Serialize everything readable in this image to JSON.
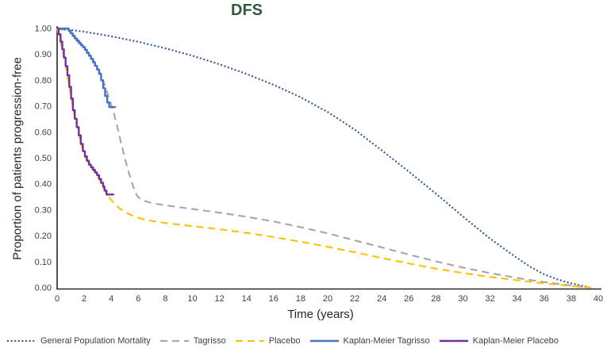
{
  "title": "DFS",
  "colors": {
    "title_green": "#2F5B3C",
    "axis": "#262626",
    "tick_text": "#404040",
    "general_population": "#2F5597",
    "tagrisso_extrapolated": "#A6A6A6",
    "placebo_extrapolated": "#FFC000",
    "km_tagrisso": "#4472C4",
    "km_placebo": "#7030A0"
  },
  "legend": {
    "position": "bottom",
    "items": [
      "General Population Mortality",
      "Tagrisso",
      "Placebo",
      "Kaplan-Meier Tagrisso",
      "Kaplan-Meier Placebo"
    ]
  },
  "chart_data": {
    "type": "line",
    "title": "DFS",
    "xlabel": "Time (years)",
    "ylabel": "Proportion of patients progression-free",
    "xlim": [
      0,
      40
    ],
    "ylim": [
      0,
      1
    ],
    "grid": false,
    "legend_position": "bottom",
    "x_ticks": [
      0,
      2,
      4,
      6,
      8,
      10,
      12,
      14,
      16,
      18,
      20,
      22,
      24,
      26,
      28,
      30,
      32,
      34,
      36,
      38,
      40
    ],
    "y_ticks": [
      "0.00",
      "0.10",
      "0.20",
      "0.30",
      "0.40",
      "0.50",
      "0.60",
      "0.70",
      "0.80",
      "0.90",
      "1.00"
    ],
    "series": [
      {
        "name": "General Population Mortality",
        "color": "#2F5597",
        "style": "dotted",
        "step": false,
        "points": [
          [
            0,
            1.0
          ],
          [
            2,
            0.988
          ],
          [
            4,
            0.97
          ],
          [
            6,
            0.949
          ],
          [
            8,
            0.924
          ],
          [
            10,
            0.895
          ],
          [
            12,
            0.862
          ],
          [
            14,
            0.825
          ],
          [
            16,
            0.783
          ],
          [
            18,
            0.735
          ],
          [
            20,
            0.678
          ],
          [
            22,
            0.61
          ],
          [
            24,
            0.53
          ],
          [
            26,
            0.448
          ],
          [
            28,
            0.363
          ],
          [
            30,
            0.275
          ],
          [
            32,
            0.19
          ],
          [
            34,
            0.115
          ],
          [
            35,
            0.08
          ],
          [
            36,
            0.052
          ],
          [
            37,
            0.032
          ],
          [
            38,
            0.017
          ],
          [
            39,
            0.006
          ],
          [
            39.4,
            0.001
          ]
        ]
      },
      {
        "name": "Tagrisso",
        "color": "#A6A6A6",
        "style": "dashed",
        "step": false,
        "points": [
          [
            0,
            1.0
          ],
          [
            0.9,
            0.99
          ],
          [
            1.4,
            0.965
          ],
          [
            1.9,
            0.935
          ],
          [
            2.4,
            0.9
          ],
          [
            2.9,
            0.858
          ],
          [
            3.2,
            0.825
          ],
          [
            3.5,
            0.785
          ],
          [
            3.8,
            0.738
          ],
          [
            4.1,
            0.69
          ],
          [
            4.4,
            0.632
          ],
          [
            4.7,
            0.565
          ],
          [
            5.0,
            0.5
          ],
          [
            5.3,
            0.443
          ],
          [
            5.6,
            0.394
          ],
          [
            5.9,
            0.355
          ],
          [
            6.2,
            0.341
          ],
          [
            6.6,
            0.333
          ],
          [
            7,
            0.327
          ],
          [
            8,
            0.318
          ],
          [
            9,
            0.311
          ],
          [
            10,
            0.304
          ],
          [
            12,
            0.29
          ],
          [
            14,
            0.274
          ],
          [
            16,
            0.256
          ],
          [
            18,
            0.234
          ],
          [
            20,
            0.21
          ],
          [
            22,
            0.183
          ],
          [
            24,
            0.156
          ],
          [
            26,
            0.128
          ],
          [
            28,
            0.102
          ],
          [
            30,
            0.078
          ],
          [
            32,
            0.057
          ],
          [
            34,
            0.038
          ],
          [
            36,
            0.022
          ],
          [
            38,
            0.009
          ],
          [
            39.4,
            0.0
          ]
        ]
      },
      {
        "name": "Placebo",
        "color": "#FFC000",
        "style": "dashed",
        "step": false,
        "points": [
          [
            0,
            1.0
          ],
          [
            0.3,
            0.94
          ],
          [
            0.6,
            0.865
          ],
          [
            0.9,
            0.775
          ],
          [
            1.2,
            0.685
          ],
          [
            1.5,
            0.617
          ],
          [
            1.8,
            0.55
          ],
          [
            2.1,
            0.503
          ],
          [
            2.4,
            0.473
          ],
          [
            2.7,
            0.452
          ],
          [
            3.0,
            0.43
          ],
          [
            3.3,
            0.401
          ],
          [
            3.6,
            0.369
          ],
          [
            3.9,
            0.346
          ],
          [
            4.2,
            0.326
          ],
          [
            4.6,
            0.307
          ],
          [
            5.0,
            0.292
          ],
          [
            5.5,
            0.28
          ],
          [
            6.0,
            0.27
          ],
          [
            6.5,
            0.263
          ],
          [
            7,
            0.258
          ],
          [
            8,
            0.25
          ],
          [
            9,
            0.244
          ],
          [
            10,
            0.238
          ],
          [
            12,
            0.226
          ],
          [
            14,
            0.212
          ],
          [
            16,
            0.196
          ],
          [
            18,
            0.178
          ],
          [
            20,
            0.158
          ],
          [
            22,
            0.137
          ],
          [
            24,
            0.115
          ],
          [
            26,
            0.094
          ],
          [
            28,
            0.074
          ],
          [
            30,
            0.057
          ],
          [
            32,
            0.042
          ],
          [
            34,
            0.029
          ],
          [
            36,
            0.017
          ],
          [
            38,
            0.007
          ],
          [
            39.7,
            0.0
          ]
        ]
      },
      {
        "name": "Kaplan-Meier Tagrisso",
        "color": "#4472C4",
        "style": "solid",
        "step": true,
        "points": [
          [
            0,
            1.0
          ],
          [
            0.85,
            0.992
          ],
          [
            1.0,
            0.982
          ],
          [
            1.15,
            0.972
          ],
          [
            1.3,
            0.962
          ],
          [
            1.45,
            0.953
          ],
          [
            1.6,
            0.944
          ],
          [
            1.75,
            0.936
          ],
          [
            1.9,
            0.928
          ],
          [
            2.05,
            0.918
          ],
          [
            2.2,
            0.906
          ],
          [
            2.35,
            0.895
          ],
          [
            2.5,
            0.883
          ],
          [
            2.65,
            0.87
          ],
          [
            2.8,
            0.856
          ],
          [
            2.95,
            0.842
          ],
          [
            3.1,
            0.825
          ],
          [
            3.25,
            0.8
          ],
          [
            3.4,
            0.77
          ],
          [
            3.55,
            0.74
          ],
          [
            3.7,
            0.715
          ],
          [
            3.85,
            0.697
          ],
          [
            4.3,
            0.695
          ]
        ]
      },
      {
        "name": "Kaplan-Meier Placebo",
        "color": "#7030A0",
        "style": "solid",
        "step": true,
        "points": [
          [
            0,
            1.0
          ],
          [
            0.12,
            0.978
          ],
          [
            0.25,
            0.95
          ],
          [
            0.38,
            0.92
          ],
          [
            0.5,
            0.888
          ],
          [
            0.63,
            0.855
          ],
          [
            0.76,
            0.82
          ],
          [
            0.9,
            0.775
          ],
          [
            1.03,
            0.73
          ],
          [
            1.17,
            0.685
          ],
          [
            1.3,
            0.652
          ],
          [
            1.45,
            0.62
          ],
          [
            1.6,
            0.588
          ],
          [
            1.75,
            0.555
          ],
          [
            1.9,
            0.527
          ],
          [
            2.05,
            0.507
          ],
          [
            2.2,
            0.49
          ],
          [
            2.35,
            0.475
          ],
          [
            2.5,
            0.465
          ],
          [
            2.65,
            0.455
          ],
          [
            2.8,
            0.445
          ],
          [
            2.95,
            0.435
          ],
          [
            3.1,
            0.42
          ],
          [
            3.25,
            0.405
          ],
          [
            3.4,
            0.39
          ],
          [
            3.5,
            0.375
          ],
          [
            3.65,
            0.36
          ],
          [
            4.15,
            0.357
          ]
        ]
      }
    ]
  }
}
